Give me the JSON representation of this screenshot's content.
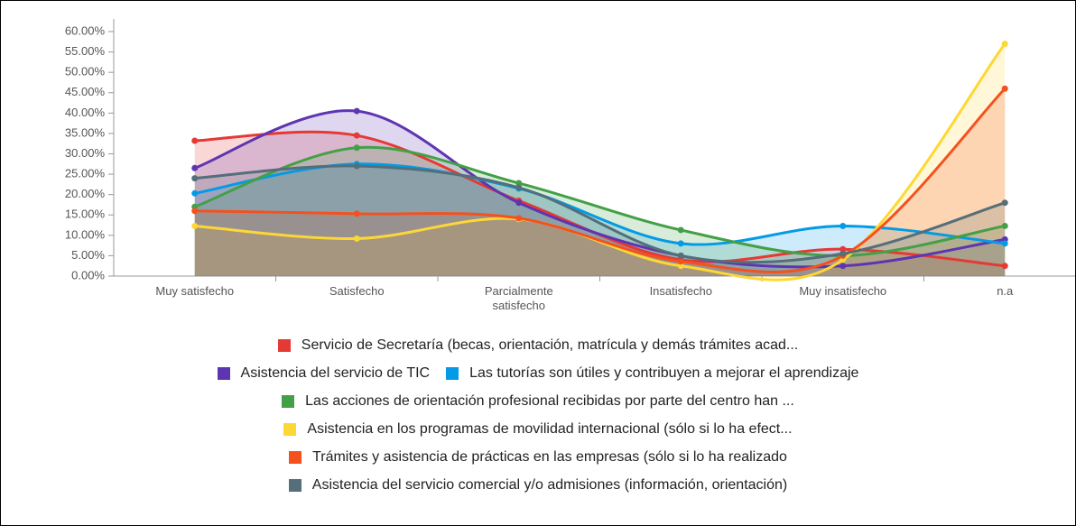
{
  "chart_data": {
    "type": "area",
    "categories": [
      "Muy satisfecho",
      "Satisfecho",
      "Parcialmente satisfecho",
      "Insatisfecho",
      "Muy insatisfecho",
      "n.a"
    ],
    "ylim": [
      0,
      60
    ],
    "yticks": [
      {
        "value": 0,
        "label": "0.00%"
      },
      {
        "value": 5,
        "label": "5.00%"
      },
      {
        "value": 10,
        "label": "10.00%"
      },
      {
        "value": 15,
        "label": "15.00%"
      },
      {
        "value": 20,
        "label": "20.00%"
      },
      {
        "value": 25,
        "label": "25.00%"
      },
      {
        "value": 30,
        "label": "30.00%"
      },
      {
        "value": 35,
        "label": "35.00%"
      },
      {
        "value": 40,
        "label": "40.00%"
      },
      {
        "value": 45,
        "label": "45.00%"
      },
      {
        "value": 50,
        "label": "50.00%"
      },
      {
        "value": 55,
        "label": "55.00%"
      },
      {
        "value": 60,
        "label": "60.00%"
      }
    ],
    "series": [
      {
        "name": "Servicio de Secretaría (becas, orientación, matrícula y demás trámites acad...",
        "color": "#e53935",
        "values": [
          33.2,
          34.5,
          18.5,
          4.0,
          6.6,
          2.5
        ]
      },
      {
        "name": "Asistencia del servicio de TIC",
        "color": "#5e35b1",
        "values": [
          26.5,
          40.5,
          18.0,
          5.0,
          2.5,
          9.0
        ]
      },
      {
        "name": "Las tutorías son útiles y contribuyen a mejorar el aprendizaje",
        "color": "#039be5",
        "values": [
          20.3,
          27.5,
          21.5,
          8.0,
          12.3,
          8.0
        ]
      },
      {
        "name": "Las acciones de orientación profesional recibidas por parte del centro han ...",
        "color": "#43a047",
        "values": [
          17.0,
          31.5,
          22.8,
          11.3,
          5.0,
          12.3
        ]
      },
      {
        "name": "Asistencia en los programas de movilidad internacional (sólo si lo ha efect...",
        "color": "#fdd835",
        "values": [
          12.3,
          9.2,
          14.0,
          2.5,
          4.0,
          57.0
        ]
      },
      {
        "name": "Trámites y asistencia de prácticas en las empresas (sólo si lo ha realizado",
        "color": "#f4511e",
        "values": [
          16.0,
          15.3,
          14.2,
          3.6,
          5.0,
          46.0
        ]
      },
      {
        "name": "Asistencia del servicio comercial y/o admisiones (información, orientación)",
        "color": "#546e7a",
        "values": [
          24.0,
          27.0,
          21.7,
          5.0,
          5.5,
          18.0
        ]
      }
    ]
  }
}
